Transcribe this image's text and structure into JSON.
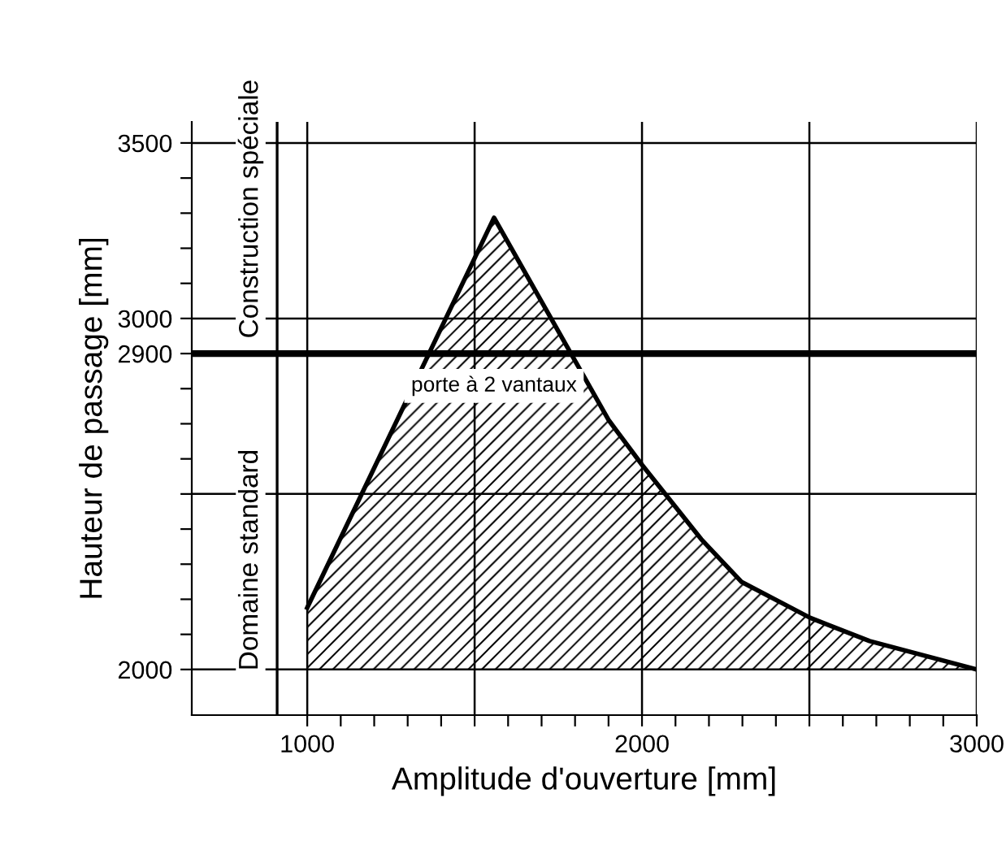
{
  "chart_data": {
    "type": "area",
    "xlabel": "Amplitude d'ouverture [mm]",
    "ylabel": "Hauteur de passage [mm]",
    "x": [
      1000,
      1558,
      1900,
      2000,
      2177,
      2298,
      2503,
      2680,
      3000
    ],
    "series": [
      {
        "color": "#000000",
        "values": [
          2176,
          3287,
          2711,
          2583,
          2371,
          2249,
          2147,
          2081,
          2000
        ]
      }
    ],
    "xlim": [
      655,
      3000
    ],
    "ylim": [
      1870,
      3560
    ],
    "xticks": [
      1000,
      {
        "value": 1100,
        "label": null
      },
      {
        "value": 1200,
        "label": null
      },
      {
        "value": 1300,
        "label": null
      },
      {
        "value": 1400,
        "label": null
      },
      {
        "value": 1500,
        "label": null
      },
      {
        "value": 1600,
        "label": null
      },
      {
        "value": 1700,
        "label": null
      },
      {
        "value": 1800,
        "label": null
      },
      {
        "value": 1900,
        "label": null
      },
      2000,
      {
        "value": 2100,
        "label": null
      },
      {
        "value": 2200,
        "label": null
      },
      {
        "value": 2300,
        "label": null
      },
      {
        "value": 2400,
        "label": null
      },
      {
        "value": 2500,
        "label": null
      },
      {
        "value": 2600,
        "label": null
      },
      {
        "value": 2700,
        "label": null
      },
      {
        "value": 2800,
        "label": null
      },
      {
        "value": 2900,
        "label": null
      },
      3000
    ],
    "yticks": [
      2000,
      {
        "value": 2100,
        "label": null
      },
      {
        "value": 2200,
        "label": null
      },
      {
        "value": 2300,
        "label": null
      },
      {
        "value": 2400,
        "label": null
      },
      {
        "value": 2500,
        "label": null
      },
      {
        "value": 2600,
        "label": null
      },
      {
        "value": 2700,
        "label": null
      },
      {
        "value": 2800,
        "label": null
      },
      2900,
      3000,
      {
        "value": 3100,
        "label": null
      },
      {
        "value": 3200,
        "label": null
      },
      {
        "value": 3300,
        "label": null
      },
      {
        "value": 3400,
        "label": null
      },
      3500
    ],
    "grid": true,
    "ref_lines": [
      {
        "axis": "y",
        "value": 2900,
        "color": "#000000"
      },
      {
        "axis": "x",
        "value": 910,
        "color": "#000000"
      }
    ],
    "annotations": [
      "porte à 2 vantaux",
      "Domaine standard",
      "Construction spéciale"
    ]
  }
}
